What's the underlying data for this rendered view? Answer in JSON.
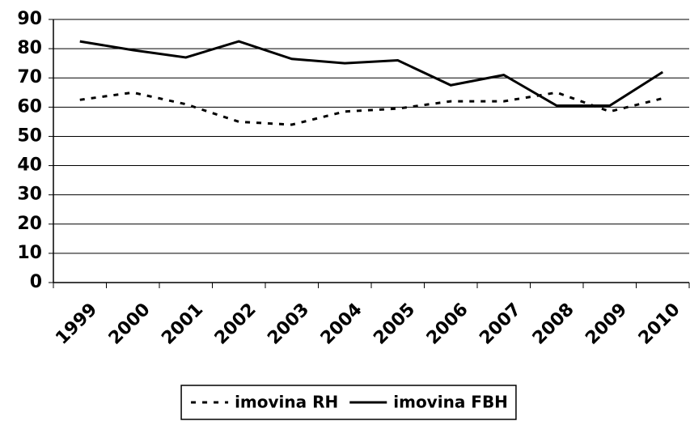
{
  "chart_data": {
    "type": "line",
    "categories": [
      "1999",
      "2000",
      "2001",
      "2002",
      "2003",
      "2004",
      "2005",
      "2006",
      "2007",
      "2008",
      "2009",
      "2010"
    ],
    "series": [
      {
        "name": "imovina RH",
        "color": "#000000",
        "dash": true,
        "values": [
          62.5,
          65,
          61,
          55,
          54,
          58.5,
          59.5,
          62,
          62,
          65,
          58.5,
          63
        ]
      },
      {
        "name": "imovina FBH",
        "color": "#000000",
        "dash": false,
        "values": [
          82.5,
          79.5,
          77,
          82.5,
          76.5,
          75,
          76,
          67.5,
          71,
          60.5,
          60.5,
          72
        ]
      }
    ],
    "ylim": [
      0,
      90
    ],
    "yticks": [
      0,
      10,
      20,
      30,
      40,
      50,
      60,
      70,
      80,
      90
    ],
    "grid": true,
    "legend": "bottom"
  }
}
